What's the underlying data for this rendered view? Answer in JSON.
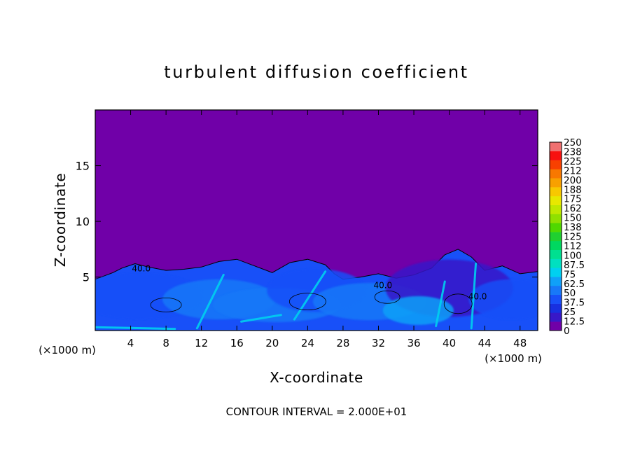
{
  "chart_data": {
    "type": "heatmap",
    "title": "turbulent diffusion coefficient",
    "xlabel": "X-coordinate",
    "ylabel": "Z-coordinate",
    "x_unit": "(×1000 m)",
    "x_unit_right": "(×1000 m)",
    "xlim": [
      0,
      50
    ],
    "ylim": [
      0.2,
      20
    ],
    "x_ticks": [
      4,
      8,
      12,
      16,
      20,
      24,
      28,
      32,
      36,
      40,
      44,
      48
    ],
    "y_ticks": [
      5,
      10,
      15
    ],
    "footer": "CONTOUR INTERVAL = 2.000E+01",
    "contour_labels": [
      {
        "text": "40.0",
        "x": 5.2,
        "y": 5.5
      },
      {
        "text": "40.0",
        "x": 32.5,
        "y": 4.0
      },
      {
        "text": "40.0",
        "x": 43.2,
        "y": 3.0
      }
    ],
    "colorbar": {
      "min": 0,
      "max": 250,
      "labels": [
        "250",
        "238",
        "225",
        "212",
        "200",
        "188",
        "175",
        "162",
        "150",
        "138",
        "125",
        "112",
        "100",
        "87.5",
        "75",
        "62.5",
        "50",
        "37.5",
        "25",
        "12.5",
        "0"
      ],
      "colors": [
        "#7000a8",
        "#3818c8",
        "#1830e0",
        "#1850f8",
        "#1878f8",
        "#10a0f8",
        "#00d0f0",
        "#00e0c0",
        "#00e090",
        "#00d860",
        "#20d030",
        "#50d800",
        "#90e000",
        "#c0e800",
        "#e8e800",
        "#f8c800",
        "#f8a000",
        "#f87800",
        "#f84000",
        "#f81010",
        "#f07070"
      ]
    },
    "background_value": 0,
    "turbulent_layer": {
      "top_profile": {
        "x": [
          0,
          2,
          3,
          4.5,
          6,
          8,
          10,
          12,
          14,
          16,
          18,
          20,
          22,
          24,
          26,
          27,
          28,
          30,
          32,
          34,
          36,
          38,
          39.5,
          41,
          42.5,
          44,
          46,
          48,
          50
        ],
        "z": [
          4.8,
          5.4,
          5.8,
          6.2,
          5.9,
          5.6,
          5.7,
          5.9,
          6.4,
          6.6,
          6.0,
          5.4,
          6.3,
          6.6,
          6.1,
          5.3,
          4.8,
          5.0,
          5.3,
          4.9,
          5.2,
          5.8,
          7.0,
          7.5,
          6.8,
          5.6,
          6.0,
          5.3,
          5.5
        ]
      },
      "typical_value": 37.5,
      "peak_value": 75
    }
  }
}
